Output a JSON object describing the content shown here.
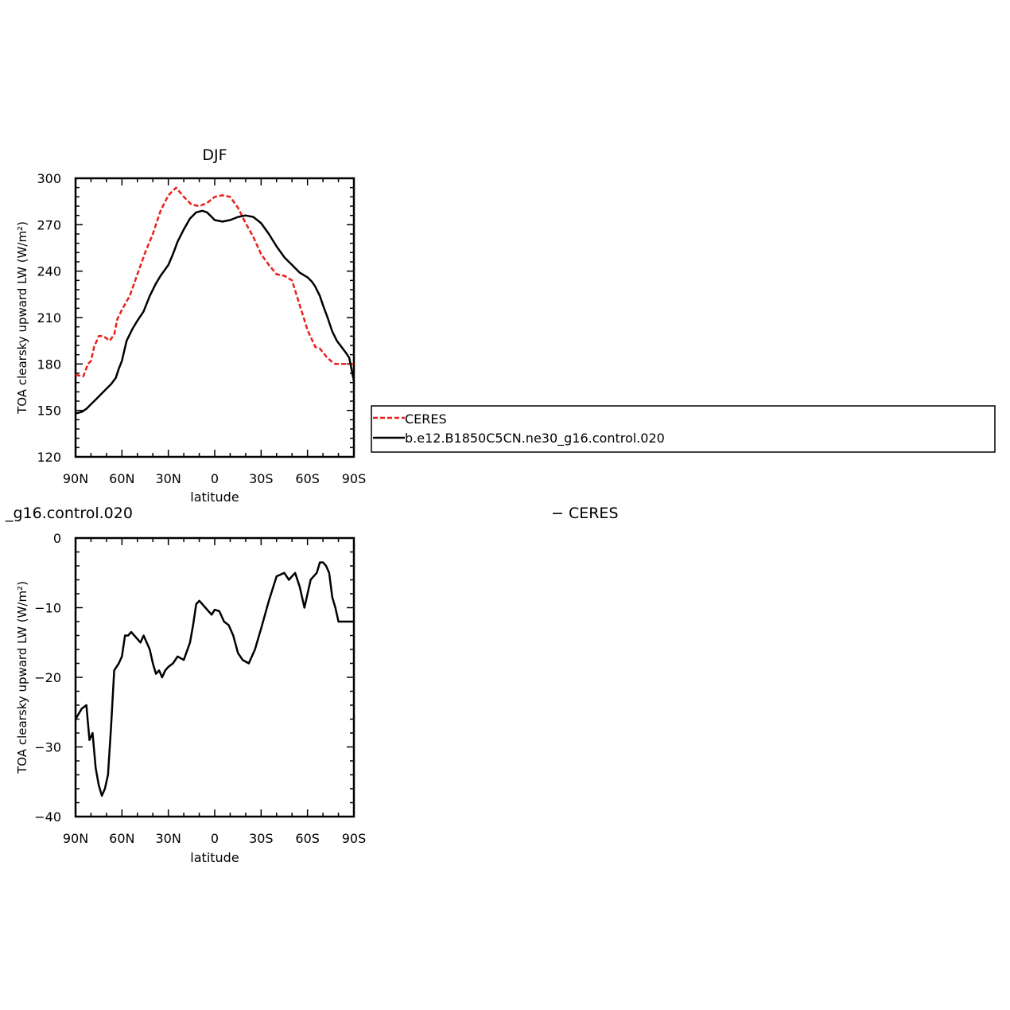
{
  "panel1": {
    "title": "DJF",
    "ylabel": "TOA clearsky upward LW (W/m²)",
    "xlabel": "latitude"
  },
  "panel2": {
    "title_fragment": "_g16.control.020",
    "title_right": "− CERES",
    "ylabel": "TOA clearsky upward LW (W/m²)",
    "xlabel": "latitude"
  },
  "legend": {
    "entries": [
      "CERES",
      "b.e12.B1850C5CN.ne30_g16.control.020"
    ]
  },
  "colors": {
    "ceres": "#e8201c",
    "model": "#000000"
  },
  "chart_data": [
    {
      "type": "line",
      "title": "DJF",
      "xlabel": "latitude",
      "ylabel": "TOA clearsky upward LW (W/m²)",
      "xlim": [
        90,
        -90
      ],
      "ylim": [
        120,
        300
      ],
      "xticks": [
        90,
        60,
        30,
        0,
        -30,
        -60,
        -90
      ],
      "xtick_labels": [
        "90N",
        "60N",
        "30N",
        "0",
        "30S",
        "60S",
        "90S"
      ],
      "yticks": [
        120,
        150,
        180,
        210,
        240,
        270,
        300
      ],
      "ytick_labels": [
        "120",
        "150",
        "180",
        "210",
        "240",
        "270",
        "300"
      ],
      "series": [
        {
          "name": "CERES",
          "style": "dashed",
          "color": "#e8201c",
          "x": [
            90,
            85,
            82,
            80,
            78,
            75,
            72,
            68,
            65,
            63,
            60,
            55,
            50,
            45,
            40,
            35,
            30,
            25,
            20,
            15,
            10,
            5,
            0,
            -5,
            -10,
            -15,
            -20,
            -25,
            -30,
            -35,
            -40,
            -45,
            -50,
            -55,
            -60,
            -65,
            -68,
            -72,
            -75,
            -78,
            -80,
            -83,
            -87,
            -90
          ],
          "y": [
            173,
            172,
            180,
            182,
            191,
            198,
            198,
            195,
            199,
            209,
            215,
            224,
            238,
            252,
            264,
            279,
            289,
            294,
            288,
            283,
            282,
            284,
            288,
            289,
            288,
            281,
            271,
            262,
            251,
            244,
            238,
            237,
            234,
            218,
            202,
            191,
            190,
            185,
            182,
            180,
            180,
            180,
            180,
            180
          ]
        },
        {
          "name": "b.e12.B1850C5CN.ne30_g16.control.020",
          "style": "solid",
          "color": "#000000",
          "x": [
            90,
            86,
            83,
            80,
            77,
            74,
            70,
            67,
            64,
            62,
            60,
            57,
            53,
            50,
            46,
            42,
            38,
            35,
            30,
            27,
            24,
            20,
            16,
            12,
            8,
            5,
            0,
            -5,
            -10,
            -15,
            -20,
            -25,
            -30,
            -35,
            -40,
            -45,
            -50,
            -55,
            -60,
            -63,
            -65,
            -68,
            -70,
            -73,
            -76,
            -79,
            -82,
            -85,
            -87,
            -90
          ],
          "y": [
            148,
            149,
            151,
            154,
            157,
            160,
            164,
            167,
            171,
            177,
            182,
            195,
            203,
            208,
            214,
            224,
            232,
            237,
            244,
            251,
            259,
            267,
            274,
            278,
            279,
            278,
            273,
            272,
            273,
            275,
            276,
            275,
            271,
            264,
            256,
            249,
            244,
            239,
            236,
            233,
            230,
            224,
            218,
            210,
            201,
            195,
            191,
            187,
            184,
            169
          ]
        }
      ]
    },
    {
      "type": "line",
      "title": "_g16.control.020 − CERES",
      "xlabel": "latitude",
      "ylabel": "TOA clearsky upward LW (W/m²)",
      "xlim": [
        90,
        -90
      ],
      "ylim": [
        -40,
        0
      ],
      "xticks": [
        90,
        60,
        30,
        0,
        -30,
        -60,
        -90
      ],
      "xtick_labels": [
        "90N",
        "60N",
        "30N",
        "0",
        "30S",
        "60S",
        "90S"
      ],
      "yticks": [
        -40,
        -30,
        -20,
        -10,
        0
      ],
      "ytick_labels": [
        "−40",
        "−30",
        "−20",
        "−10",
        "0"
      ],
      "series": [
        {
          "style": "solid",
          "color": "#000000",
          "x": [
            90,
            86,
            83,
            81,
            79,
            77,
            75,
            73,
            71,
            69,
            67,
            65,
            62,
            60,
            58,
            56,
            54,
            52,
            48,
            46,
            42,
            40,
            38,
            36,
            34,
            32,
            30,
            27,
            24,
            20,
            16,
            14,
            12,
            10,
            8,
            6,
            4,
            2,
            0,
            -3,
            -6,
            -9,
            -12,
            -15,
            -18,
            -22,
            -26,
            -30,
            -35,
            -40,
            -45,
            -48,
            -50,
            -52,
            -55,
            -58,
            -60,
            -62,
            -64,
            -66,
            -68,
            -70,
            -72,
            -74,
            -76,
            -78,
            -80,
            -82,
            -84,
            -86,
            -88,
            -90
          ],
          "y": [
            -26,
            -24.5,
            -24,
            -29,
            -28,
            -33,
            -35.5,
            -37,
            -36,
            -34,
            -27,
            -19,
            -18,
            -17,
            -14,
            -14,
            -13.5,
            -14,
            -15,
            -14,
            -16,
            -18,
            -19.5,
            -19,
            -20,
            -19,
            -18.5,
            -18,
            -17,
            -17.5,
            -15,
            -12.5,
            -9.5,
            -9,
            -9.5,
            -10,
            -10.5,
            -11,
            -10.3,
            -10.5,
            -12,
            -12.5,
            -14,
            -16.5,
            -17.5,
            -18,
            -16,
            -13,
            -9,
            -5.5,
            -5,
            -6,
            -5.5,
            -5,
            -7,
            -10,
            -8,
            -6,
            -5.5,
            -5,
            -3.5,
            -3.5,
            -4,
            -5,
            -8.5,
            -10,
            -12,
            -12,
            -12,
            -12,
            -12,
            -12
          ]
        }
      ]
    }
  ]
}
